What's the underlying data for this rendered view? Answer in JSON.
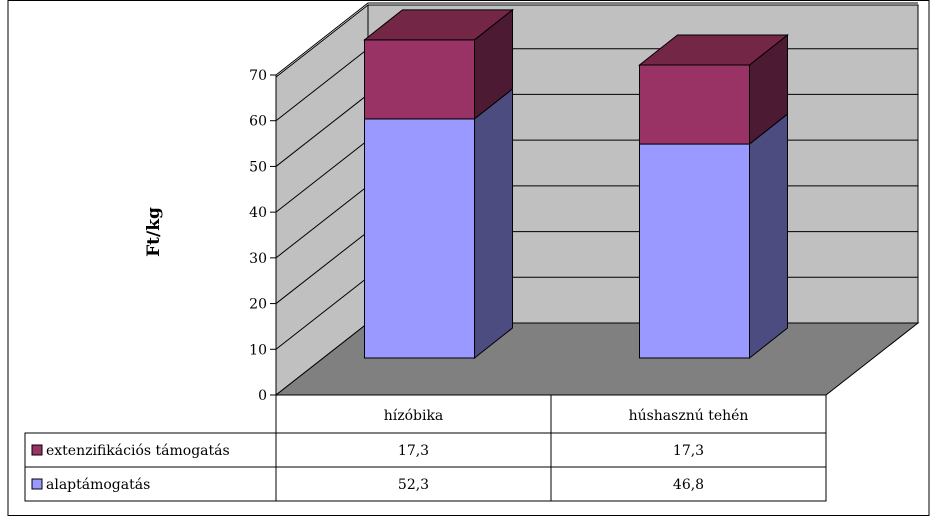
{
  "chart_data": {
    "type": "bar",
    "stacked": true,
    "three_d": true,
    "categories": [
      "hízóbika",
      "húshasznú tehén"
    ],
    "series": [
      {
        "name": "alaptámogatás",
        "values": [
          52.3,
          46.8
        ],
        "color": "#9999FF"
      },
      {
        "name": "extenzifikációs támogatás",
        "values": [
          17.3,
          17.3
        ],
        "color": "#993366"
      }
    ],
    "ylabel": "Ft/kg",
    "ylim": [
      0,
      70
    ],
    "yticks": [
      0,
      10,
      20,
      30,
      40,
      50,
      60,
      70
    ],
    "grid": true,
    "legend": "data table",
    "colors": {
      "wall": "#C0C0C0",
      "floor": "#808080",
      "seg0_side": "#4C4C80",
      "seg0_top": "#7373BF",
      "seg1_side": "#4D1A33",
      "seg1_top": "#732646"
    },
    "table": {
      "rows": [
        {
          "label": "extenzifikációs támogatás",
          "values": [
            "17,3",
            "17,3"
          ]
        },
        {
          "label": "alaptámogatás",
          "values": [
            "52,3",
            "46,8"
          ]
        }
      ]
    }
  }
}
